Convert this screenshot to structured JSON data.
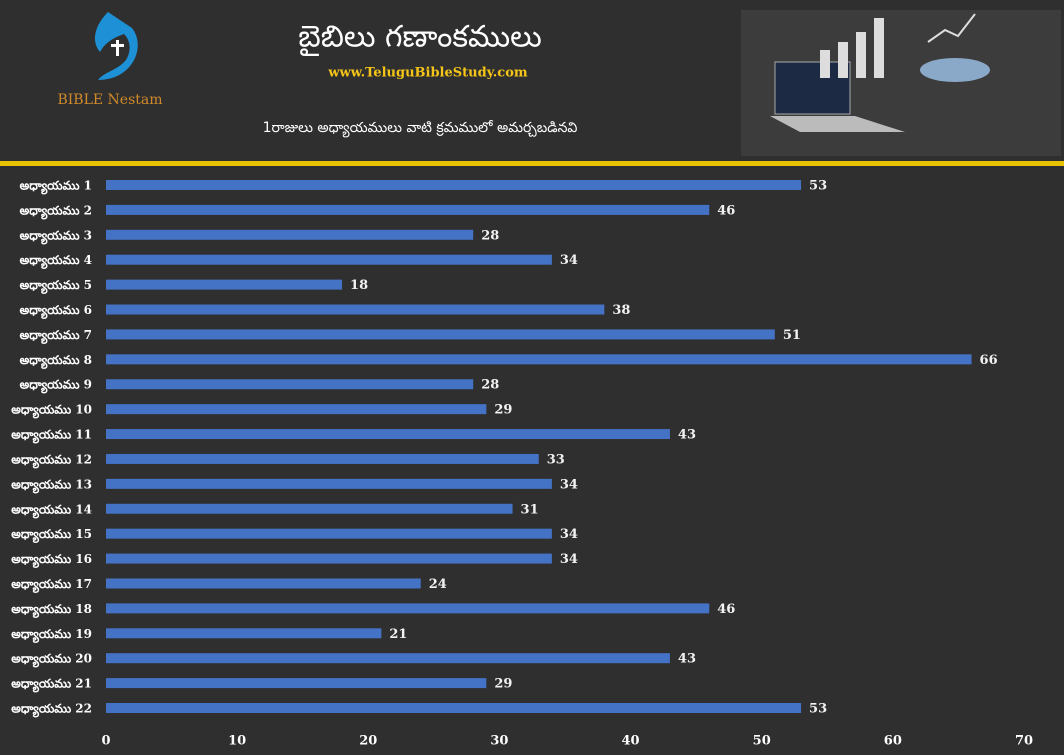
{
  "chart_data": {
    "type": "bar",
    "orientation": "horizontal",
    "title": "బైబిలు గణాంకములు",
    "logo": "BIBLE Nestam",
    "website": "www.TeluguBibleStudy.com",
    "subtitle": "1రాజులు అధ్యాయములు వాటి క్రమములో అమర్చబడినవి",
    "categories": [
      "అధ్యాయము 1",
      "అధ్యాయము 2",
      "అధ్యాయము 3",
      "అధ్యాయము 4",
      "అధ్యాయము 5",
      "అధ్యాయము 6",
      "అధ్యాయము 7",
      "అధ్యాయము 8",
      "అధ్యాయము 9",
      "అధ్యాయము 10",
      "అధ్యాయము 11",
      "అధ్యాయము 12",
      "అధ్యాయము 13",
      "అధ్యాయము 14",
      "అధ్యాయము 15",
      "అధ్యాయము 16",
      "అధ్యాయము 17",
      "అధ్యాయము 18",
      "అధ్యాయము 19",
      "అధ్యాయము 20",
      "అధ్యాయము 21",
      "అధ్యాయము 22"
    ],
    "values": [
      53,
      46,
      28,
      34,
      18,
      38,
      51,
      66,
      28,
      29,
      43,
      33,
      34,
      31,
      34,
      34,
      24,
      46,
      21,
      43,
      29,
      53
    ],
    "color": "#4472c4",
    "xlim": [
      0,
      70
    ],
    "xticks": [
      0,
      10,
      20,
      30,
      40,
      50,
      60,
      70
    ],
    "grid": false
  }
}
